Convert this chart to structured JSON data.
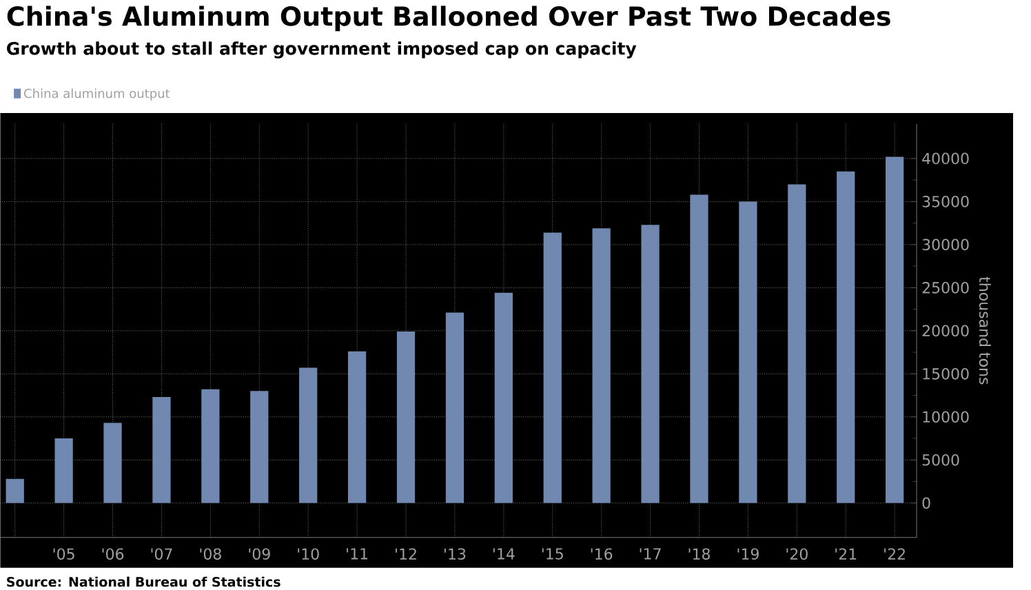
{
  "chart_data": {
    "type": "bar",
    "title": "China's Aluminum Output Ballooned Over Past Two Decades",
    "subtitle": "Growth about to stall after government imposed cap on capacity",
    "ylabel": "thousand tons",
    "categories": [
      null,
      "'05",
      "'06",
      "'07",
      "'08",
      "'09",
      "'10",
      "'11",
      "'12",
      "'13",
      "'14",
      "'15",
      "'16",
      "'17",
      "'18",
      "'19",
      "'20",
      "'21",
      "'22"
    ],
    "series": [
      {
        "name": "China aluminum output",
        "color": "#7189b0",
        "values": [
          2800,
          7500,
          9300,
          12300,
          13200,
          13000,
          15700,
          17600,
          19900,
          22100,
          24400,
          31400,
          31900,
          32300,
          35800,
          35000,
          37000,
          38500,
          40200
        ]
      }
    ],
    "ylim": [
      -4000,
      44000
    ],
    "yticks": [
      0,
      5000,
      10000,
      15000,
      20000,
      25000,
      30000,
      35000,
      40000
    ],
    "grid": true,
    "legend": "top left",
    "annotations": [
      "Source: National Bureau of Statistics"
    ]
  }
}
